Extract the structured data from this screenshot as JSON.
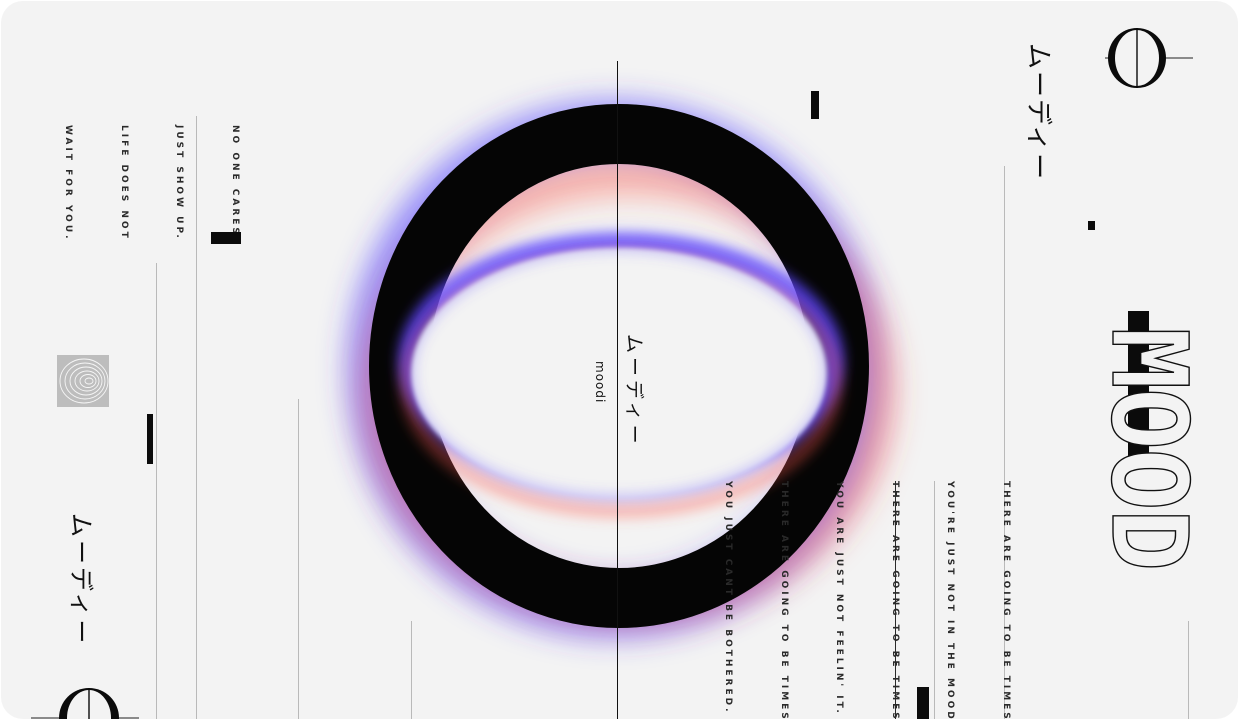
{
  "brand": {
    "kana": "ムーディー",
    "romaji": "moodi",
    "wordmark": "MOOD"
  },
  "quote_left": {
    "lines": [
      "NO ONE CARES.",
      "JUST SHOW UP.",
      "LIFE DOES NOT",
      "WAIT FOR YOU."
    ]
  },
  "quote_right": {
    "lines": [
      "THERE ARE GOING TO BE TIMES",
      "YOU'RE JUST NOT IN THE MOOD.",
      "THERE ARE GOING TO BE TIMES",
      "YOU ARE JUST NOT FEELIN' IT.",
      "THERE ARE GOING TO BE TIMES",
      "YOU JUST CANT BE BOTHERED."
    ]
  },
  "colors": {
    "background": "#f3f3f3",
    "ink": "#0b0b0b",
    "glow_blue": "#4a3bff",
    "glow_red": "#ff4a3a"
  }
}
